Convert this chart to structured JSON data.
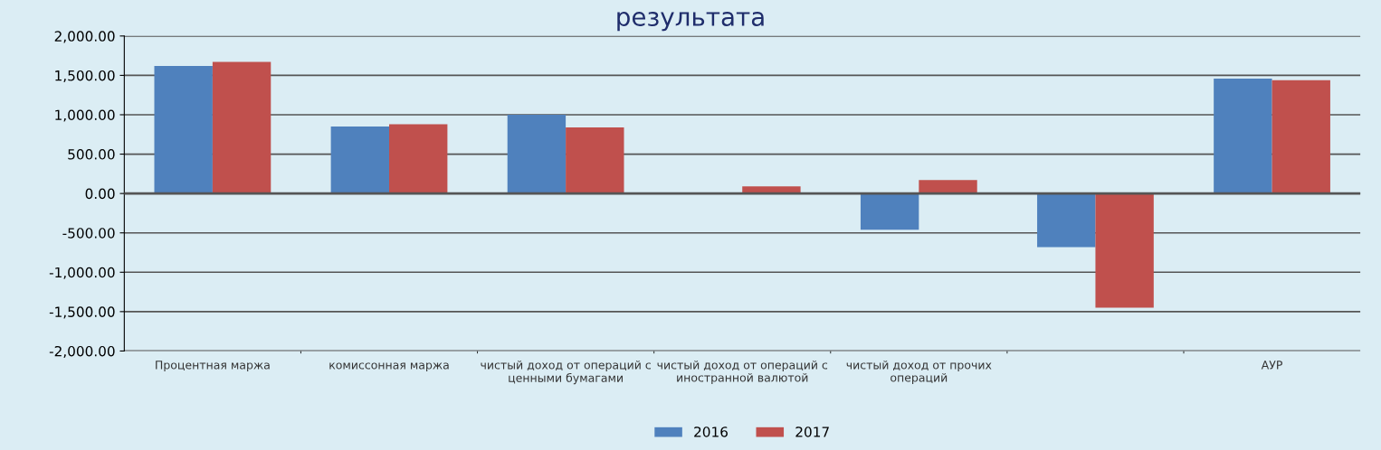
{
  "chart_data": {
    "type": "bar",
    "title": "результата",
    "categories": [
      "Процентная маржа",
      "комиссонная маржа",
      "чистый доход от операций с ценными бумагами",
      "чистый доход от операций с иностранной валютой",
      "чистый доход от прочих операций",
      null,
      "АУР"
    ],
    "series": [
      {
        "name": "2016",
        "color": "#4f81bd",
        "values": [
          1620,
          850,
          1000,
          null,
          -460,
          -680,
          1460
        ]
      },
      {
        "name": "2017",
        "color": "#c0504d",
        "values": [
          1670,
          880,
          840,
          90,
          170,
          -1450,
          1440
        ]
      }
    ],
    "ylim": [
      -2000,
      2000
    ],
    "yticks": [
      {
        "value": -2000,
        "label": "-2,000.00"
      },
      {
        "value": -1500,
        "label": "-1,500.00"
      },
      {
        "value": -1000,
        "label": "-1,000.00"
      },
      {
        "value": -500,
        "label": "-500.00"
      },
      {
        "value": 0,
        "label": "0.00"
      },
      {
        "value": 500,
        "label": "500.00"
      },
      {
        "value": 1000,
        "label": "1,000.00"
      },
      {
        "value": 1500,
        "label": "1,500.00"
      },
      {
        "value": 2000,
        "label": "2,000.00"
      }
    ],
    "grid": "y",
    "legend": "bottom"
  }
}
